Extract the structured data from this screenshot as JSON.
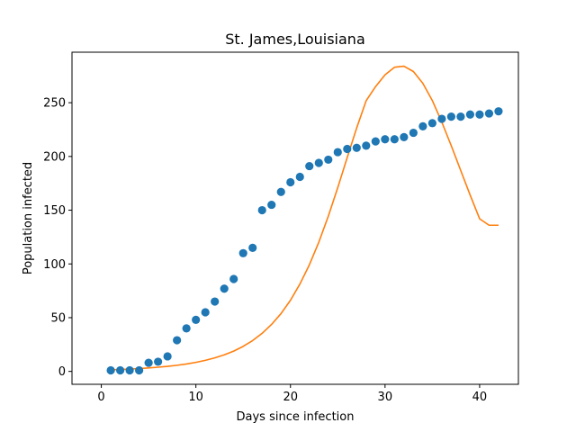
{
  "chart_data": {
    "type": "scatter",
    "title": "St. James,Louisiana",
    "xlabel": "Days since infection",
    "ylabel": "Population infected",
    "xlim": [
      -3.1,
      44.1
    ],
    "ylim": [
      -12,
      297
    ],
    "xticks": [
      0,
      10,
      20,
      30,
      40
    ],
    "yticks": [
      0,
      50,
      100,
      150,
      200,
      250
    ],
    "grid": false,
    "legend": "none",
    "series": [
      {
        "kind": "scatter",
        "color": "#1f77b4",
        "x": [
          1,
          2,
          3,
          4,
          5,
          6,
          7,
          8,
          9,
          10,
          11,
          12,
          13,
          14,
          15,
          16,
          17,
          18,
          19,
          20,
          21,
          22,
          23,
          24,
          25,
          26,
          27,
          28,
          29,
          30,
          31,
          32,
          33,
          34,
          35,
          36,
          37,
          38,
          39,
          40,
          41,
          42
        ],
        "y": [
          1,
          1,
          1,
          1,
          8,
          9,
          14,
          29,
          40,
          48,
          55,
          65,
          77,
          86,
          110,
          115,
          150,
          155,
          167,
          176,
          181,
          191,
          194,
          197,
          204,
          207,
          208,
          210,
          214,
          216,
          216,
          218,
          222,
          228,
          231,
          235,
          237,
          237,
          239,
          239,
          240,
          242
        ]
      },
      {
        "kind": "line",
        "color": "#ff7f0e",
        "x": [
          1,
          2,
          3,
          4,
          5,
          6,
          7,
          8,
          9,
          10,
          11,
          12,
          13,
          14,
          15,
          16,
          17,
          18,
          19,
          20,
          21,
          22,
          23,
          24,
          25,
          26,
          27,
          28,
          29,
          30,
          31,
          32,
          33,
          34,
          35,
          36,
          37,
          38,
          39,
          40,
          41,
          42
        ],
        "y": [
          1.5,
          1.8,
          2.2,
          2.6,
          3.2,
          3.9,
          4.7,
          5.7,
          6.9,
          8.4,
          10.3,
          12.6,
          15.4,
          18.9,
          23.3,
          28.7,
          35.4,
          43.7,
          53.8,
          66.2,
          81.3,
          99.2,
          120.3,
          144.4,
          171,
          199,
          226.5,
          251.8,
          265,
          276,
          283,
          284,
          279,
          268,
          252,
          232,
          210,
          187,
          164,
          142,
          136,
          136
        ]
      }
    ]
  }
}
